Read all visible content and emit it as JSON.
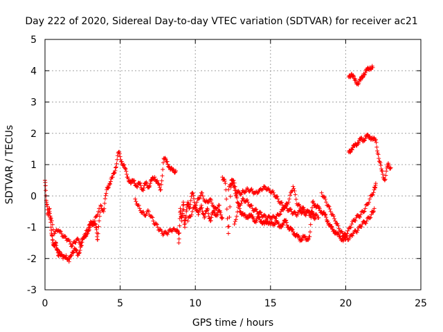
{
  "chart_data": {
    "type": "scatter",
    "title": "Day 222 of 2020, Sidereal Day-to-day VTEC variation (SDTVAR) for receiver ac21",
    "xlabel": "GPS time / hours",
    "ylabel": "SDTVAR / TECUs",
    "xlim": [
      0,
      25
    ],
    "ylim": [
      -3,
      5
    ],
    "x_ticks": [
      "0",
      "5",
      "10",
      "15",
      "20",
      "25"
    ],
    "y_ticks": [
      "-3",
      "-2",
      "-1",
      "0",
      "1",
      "2",
      "3",
      "4",
      "5"
    ],
    "grid": true,
    "marker": "plus",
    "color": "#ff0000",
    "series": [
      {
        "name": "SDTVAR",
        "segments": [
          {
            "x": [
              0.0,
              0.1,
              0.2,
              0.3,
              0.4,
              0.5,
              0.6,
              0.7,
              0.8,
              0.9,
              1.0,
              1.2,
              1.4,
              1.6,
              1.8,
              2.0,
              2.2,
              2.4,
              2.6,
              2.8,
              3.0,
              3.2,
              3.4,
              3.5,
              3.7,
              3.9,
              4.1,
              4.3,
              4.5,
              4.7,
              4.9,
              5.1,
              5.3,
              5.5,
              5.7,
              5.9,
              6.1,
              6.3,
              6.5,
              6.7,
              6.9,
              7.1,
              7.3,
              7.5,
              7.7,
              7.9,
              8.1,
              8.3,
              8.5,
              8.7
            ],
            "y": [
              0.5,
              -0.2,
              -0.6,
              -0.4,
              -1.0,
              -1.4,
              -1.6,
              -1.5,
              -1.7,
              -1.9,
              -1.8,
              -2.0,
              -1.9,
              -2.1,
              -1.8,
              -1.7,
              -1.9,
              -1.6,
              -1.3,
              -1.2,
              -0.9,
              -0.8,
              -1.0,
              -1.4,
              -0.3,
              -0.5,
              0.2,
              0.4,
              0.6,
              0.9,
              1.4,
              1.1,
              0.9,
              0.6,
              0.4,
              0.5,
              0.3,
              0.4,
              0.2,
              0.4,
              0.3,
              0.5,
              0.6,
              0.4,
              0.2,
              1.2,
              1.1,
              0.9,
              0.8,
              0.8
            ]
          },
          {
            "x": [
              0.3,
              0.6,
              0.9,
              1.2,
              1.5,
              1.8,
              2.1,
              2.4,
              2.7,
              3.0,
              3.3,
              3.6
            ],
            "y": [
              -0.5,
              -1.2,
              -1.1,
              -1.3,
              -1.4,
              -1.6,
              -1.4,
              -1.5,
              -1.2,
              -1.0,
              -0.8,
              -0.4
            ]
          },
          {
            "x": [
              6.0,
              6.3,
              6.6,
              6.9,
              7.2,
              7.5,
              7.8,
              8.1,
              8.4,
              8.7,
              8.9
            ],
            "y": [
              -0.1,
              -0.4,
              -0.6,
              -0.5,
              -0.8,
              -1.0,
              -1.2,
              -1.2,
              -1.1,
              -1.1,
              -1.2
            ]
          },
          {
            "x": [
              8.9,
              9.0,
              9.1,
              9.2,
              9.3,
              9.4,
              9.5,
              9.6,
              9.8,
              10.0,
              10.2,
              10.4,
              10.6,
              10.8,
              11.0,
              11.2,
              11.4,
              11.6,
              11.8
            ],
            "y": [
              -1.5,
              -0.4,
              -0.8,
              -0.2,
              -1.0,
              -0.5,
              -0.2,
              -0.4,
              0.1,
              -0.3,
              -0.6,
              -0.3,
              -0.7,
              -0.4,
              -0.8,
              -0.5,
              -0.6,
              -0.5,
              -0.7
            ]
          },
          {
            "x": [
              9.5,
              9.8,
              10.1,
              10.4,
              10.7,
              11.0,
              11.3,
              11.6
            ],
            "y": [
              -0.8,
              -0.5,
              -0.2,
              0.1,
              -0.2,
              -0.1,
              -0.4,
              -0.3
            ]
          },
          {
            "x": [
              11.8,
              12.0,
              12.2,
              12.4,
              12.6,
              12.8,
              13.0,
              13.2,
              13.4,
              13.6,
              13.8,
              14.0,
              14.2,
              14.4,
              14.6,
              14.8,
              15.0,
              15.2,
              15.4,
              15.6,
              15.8,
              16.0,
              16.2,
              16.4,
              16.6,
              16.8,
              17.0,
              17.2,
              17.4,
              17.6,
              17.8,
              18.0,
              18.2,
              18.4,
              18.6,
              18.8,
              19.0,
              19.2,
              19.4,
              19.6,
              19.8,
              20.0
            ],
            "y": [
              0.6,
              0.4,
              -1.2,
              0.5,
              0.3,
              -0.2,
              -0.5,
              -0.6,
              -0.7,
              -0.6,
              -0.7,
              -0.8,
              -0.7,
              -0.8,
              -0.9,
              -0.8,
              -0.9,
              -0.9,
              -0.8,
              -1.0,
              -0.9,
              -0.8,
              -1.0,
              -1.1,
              -1.2,
              -1.3,
              -1.4,
              -1.3,
              -1.4,
              -1.3,
              -0.2,
              -0.3,
              -0.4,
              -0.5,
              -0.6,
              -0.8,
              -1.0,
              -1.1,
              -1.2,
              -1.3,
              -1.4,
              -1.4
            ]
          },
          {
            "x": [
              12.2,
              12.5,
              12.8,
              13.1,
              13.4,
              13.7,
              14.0,
              14.3,
              14.6,
              14.9,
              15.2,
              15.5,
              15.8,
              16.1,
              16.4,
              16.7,
              17.0,
              17.3,
              17.6,
              17.9,
              18.2
            ],
            "y": [
              0.2,
              0.5,
              0.1,
              0.1,
              0.2,
              0.2,
              0.1,
              0.2,
              0.3,
              0.2,
              0.1,
              -0.1,
              -0.3,
              -0.4,
              -0.5,
              -0.6,
              -0.5,
              -0.6,
              -0.5,
              -0.6,
              -0.7
            ]
          },
          {
            "x": [
              12.6,
              12.9,
              13.2,
              13.5,
              13.8,
              14.1,
              14.4,
              14.7,
              15.0,
              15.3,
              15.6,
              15.9,
              16.2,
              16.5,
              16.8,
              17.1,
              17.4,
              17.7,
              18.0
            ],
            "y": [
              -0.9,
              -0.3,
              -0.1,
              -0.2,
              -0.4,
              -0.5,
              -0.6,
              -0.7,
              -0.7,
              -0.7,
              -0.6,
              -0.4,
              -0.2,
              0.3,
              -0.3,
              -0.4,
              -0.5,
              -0.6,
              -0.7
            ]
          },
          {
            "x": [
              18.4,
              18.7,
              19.0,
              19.3,
              19.6,
              19.9,
              20.2,
              20.5,
              20.8,
              21.1,
              21.4,
              21.7,
              21.9
            ],
            "y": [
              0.1,
              -0.2,
              -0.5,
              -0.8,
              -1.1,
              -1.3,
              -1.4,
              -1.2,
              -1.1,
              -0.9,
              -0.8,
              -0.6,
              -0.4
            ]
          },
          {
            "x": [
              19.8,
              20.1,
              20.4,
              20.7,
              21.0,
              21.3,
              21.6,
              21.9,
              22.0
            ],
            "y": [
              -1.3,
              -1.2,
              -0.9,
              -0.7,
              -0.6,
              -0.4,
              -0.1,
              0.2,
              0.4
            ]
          },
          {
            "x": [
              20.2,
              20.4,
              20.6,
              20.8,
              21.0,
              21.2,
              21.4,
              21.6,
              21.8,
              22.0,
              22.2,
              22.4,
              22.6,
              22.8,
              23.0
            ],
            "y": [
              1.4,
              1.5,
              1.6,
              1.7,
              1.8,
              1.8,
              1.9,
              1.9,
              1.8,
              1.8,
              1.2,
              0.8,
              0.5,
              1.0,
              0.9
            ]
          },
          {
            "x": [
              20.2,
              20.4,
              20.6,
              20.8,
              21.0,
              21.2,
              21.4,
              21.6,
              21.8
            ],
            "y": [
              3.8,
              3.9,
              3.7,
              3.6,
              3.7,
              3.9,
              4.0,
              4.1,
              4.1
            ]
          }
        ]
      }
    ]
  }
}
